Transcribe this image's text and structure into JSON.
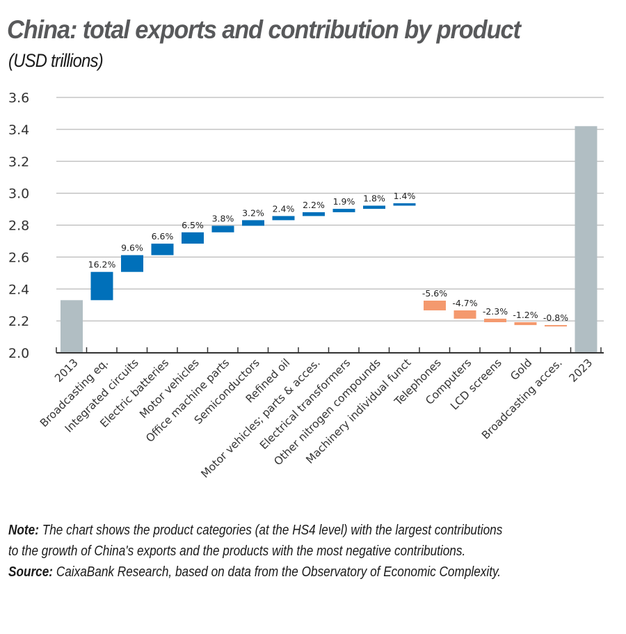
{
  "header": {
    "title": "China: total exports and contribution by product",
    "subtitle": "(USD trillions)"
  },
  "colors": {
    "total": "#B1BEC3",
    "positive": "#0070BA",
    "negative": "#F4996E",
    "grid": "#b9b9b9",
    "axis": "#333333"
  },
  "chart_data": {
    "type": "bar",
    "subtype": "waterfall",
    "title": "China: total exports and contribution by product",
    "subtitle": "(USD trillions)",
    "xlabel": "",
    "ylabel": "USD trillions",
    "ylim": [
      2.0,
      3.6
    ],
    "yticks": [
      2.0,
      2.2,
      2.4,
      2.6,
      2.8,
      3.0,
      3.2,
      3.4,
      3.6
    ],
    "ytick_labels": [
      "2.0",
      "2.2",
      "2.4",
      "2.6",
      "2.8",
      "3.0",
      "3.2",
      "3.4",
      "3.6"
    ],
    "grid": true,
    "legend": null,
    "categories": [
      "2013",
      "Broadcasting eq.",
      "Integrated circuits",
      "Electric batteries",
      "Motor vehicles",
      "Office machine parts",
      "Semiconductors",
      "Refined oil",
      "Motor vehicles; parts & acces.",
      "Electrical transformers",
      "Other nitrogen compounds",
      "Machinery individual funct",
      "Telephones",
      "Computers",
      "LCD screens",
      "Gold",
      "Broadcasting acces.",
      "2023"
    ],
    "bars": [
      {
        "label": "2013",
        "kind": "total",
        "start": 2.0,
        "end": 2.33,
        "annotation": ""
      },
      {
        "label": "Broadcasting eq.",
        "kind": "positive",
        "start": 2.33,
        "end": 2.507,
        "annotation": "16.2%"
      },
      {
        "label": "Integrated circuits",
        "kind": "positive",
        "start": 2.507,
        "end": 2.612,
        "annotation": "9.6%"
      },
      {
        "label": "Electric batteries",
        "kind": "positive",
        "start": 2.612,
        "end": 2.684,
        "annotation": "6.6%"
      },
      {
        "label": "Motor vehicles",
        "kind": "positive",
        "start": 2.684,
        "end": 2.755,
        "annotation": "6.5%"
      },
      {
        "label": "Office machine parts",
        "kind": "positive",
        "start": 2.755,
        "end": 2.796,
        "annotation": "3.8%"
      },
      {
        "label": "Semiconductors",
        "kind": "positive",
        "start": 2.796,
        "end": 2.831,
        "annotation": "3.2%"
      },
      {
        "label": "Refined oil",
        "kind": "positive",
        "start": 2.831,
        "end": 2.857,
        "annotation": "2.4%"
      },
      {
        "label": "Motor vehicles; parts & acces.",
        "kind": "positive",
        "start": 2.857,
        "end": 2.881,
        "annotation": "2.2%"
      },
      {
        "label": "Electrical transformers",
        "kind": "positive",
        "start": 2.881,
        "end": 2.902,
        "annotation": "1.9%"
      },
      {
        "label": "Other nitrogen compounds",
        "kind": "positive",
        "start": 2.902,
        "end": 2.922,
        "annotation": "1.8%"
      },
      {
        "label": "Machinery individual funct",
        "kind": "positive",
        "start": 2.922,
        "end": 2.937,
        "annotation": "1.4%"
      },
      {
        "label": "Telephones",
        "kind": "negative",
        "start": 2.327,
        "end": 2.266,
        "annotation": "-5.6%"
      },
      {
        "label": "Computers",
        "kind": "negative",
        "start": 2.266,
        "end": 2.214,
        "annotation": "-4.7%"
      },
      {
        "label": "LCD screens",
        "kind": "negative",
        "start": 2.214,
        "end": 2.192,
        "annotation": "-2.3%"
      },
      {
        "label": "Gold",
        "kind": "negative",
        "start": 2.192,
        "end": 2.174,
        "annotation": "-1.2%"
      },
      {
        "label": "Broadcasting acces.",
        "kind": "negative",
        "start": 2.174,
        "end": 2.166,
        "annotation": "-0.8%"
      },
      {
        "label": "2023",
        "kind": "total",
        "start": 2.0,
        "end": 3.42,
        "annotation": ""
      }
    ],
    "values": [
      2.33,
      16.2,
      9.6,
      6.6,
      6.5,
      3.8,
      3.2,
      2.4,
      2.2,
      1.9,
      1.8,
      1.4,
      -5.6,
      -4.7,
      -2.3,
      -1.2,
      -0.8,
      3.42
    ],
    "values_note": "First and last values are total exports (USD trillions); middle values are % contribution labels shown above bars"
  },
  "notes": {
    "note_label": "Note:",
    "note_text": " The chart shows the product categories (at the HS4 level) with the largest contributions",
    "note_text_2": "to the growth of China's exports and the products with the most negative contributions.",
    "source_label": "Source:",
    "source_text": " CaixaBank Research, based on data from the Observatory of Economic Complexity."
  }
}
